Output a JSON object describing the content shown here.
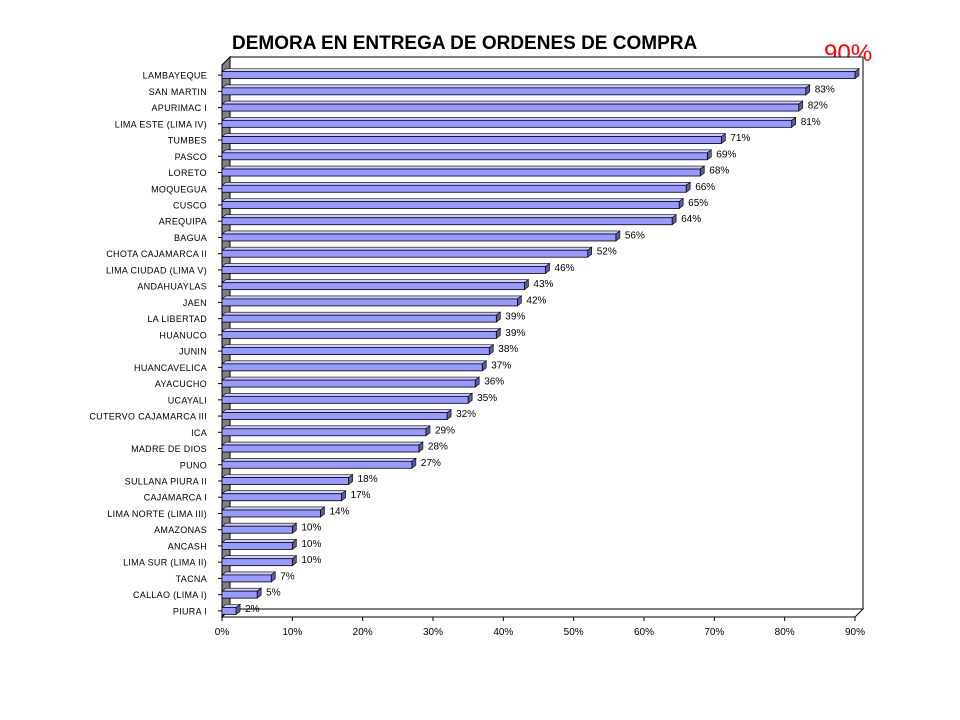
{
  "title": "DEMORA EN ENTREGA DE ORDENES DE COMPRA",
  "highlight_label": "90%",
  "colors": {
    "bar_fill": "#9999ff",
    "bar_top": "#ccccff",
    "bar_side": "#5c5c99",
    "wall": "#808080",
    "highlight": "#ff0000"
  },
  "chart_data": {
    "type": "bar",
    "orientation": "horizontal",
    "title": "DEMORA EN ENTREGA DE ORDENES DE COMPRA",
    "xlim": [
      0,
      90
    ],
    "x_ticks": [
      "0%",
      "10%",
      "20%",
      "30%",
      "40%",
      "50%",
      "60%",
      "70%",
      "80%",
      "90%"
    ],
    "categories": [
      "LAMBAYEQUE",
      "SAN MARTIN",
      "APURIMAC I",
      "LIMA ESTE (LIMA IV)",
      "TUMBES",
      "PASCO",
      "LORETO",
      "MOQUEGUA",
      "CUSCO",
      "AREQUIPA",
      "BAGUA",
      "CHOTA CAJAMARCA II",
      "LIMA CIUDAD (LIMA V)",
      "ANDAHUAYLAS",
      "JAEN",
      "LA LIBERTAD",
      "HUANUCO",
      "JUNIN",
      "HUANCAVELICA",
      "AYACUCHO",
      "UCAYALI",
      "CUTERVO CAJAMARCA III",
      "ICA",
      "MADRE DE DIOS",
      "PUNO",
      "SULLANA PIURA II",
      "CAJAMARCA I",
      "LIMA NORTE (LIMA III)",
      "AMAZONAS",
      "ANCASH",
      "LIMA SUR (LIMA II)",
      "TACNA",
      "CALLAO (LIMA I)",
      "PIURA I"
    ],
    "values": [
      90,
      83,
      82,
      81,
      71,
      69,
      68,
      66,
      65,
      64,
      56,
      52,
      46,
      43,
      42,
      39,
      39,
      38,
      37,
      36,
      35,
      32,
      29,
      28,
      27,
      18,
      17,
      14,
      10,
      10,
      10,
      7,
      5,
      2
    ],
    "labels": [
      "",
      "83%",
      "82%",
      "81%",
      "71%",
      "69%",
      "68%",
      "66%",
      "65%",
      "64%",
      "56%",
      "52%",
      "46%",
      "43%",
      "42%",
      "39%",
      "39%",
      "38%",
      "37%",
      "36%",
      "35%",
      "32%",
      "29%",
      "28%",
      "27%",
      "18%",
      "17%",
      "14%",
      "10%",
      "10%",
      "10%",
      "7%",
      "5%",
      "2%"
    ],
    "grid": false,
    "legend": "none",
    "style": "3d"
  }
}
